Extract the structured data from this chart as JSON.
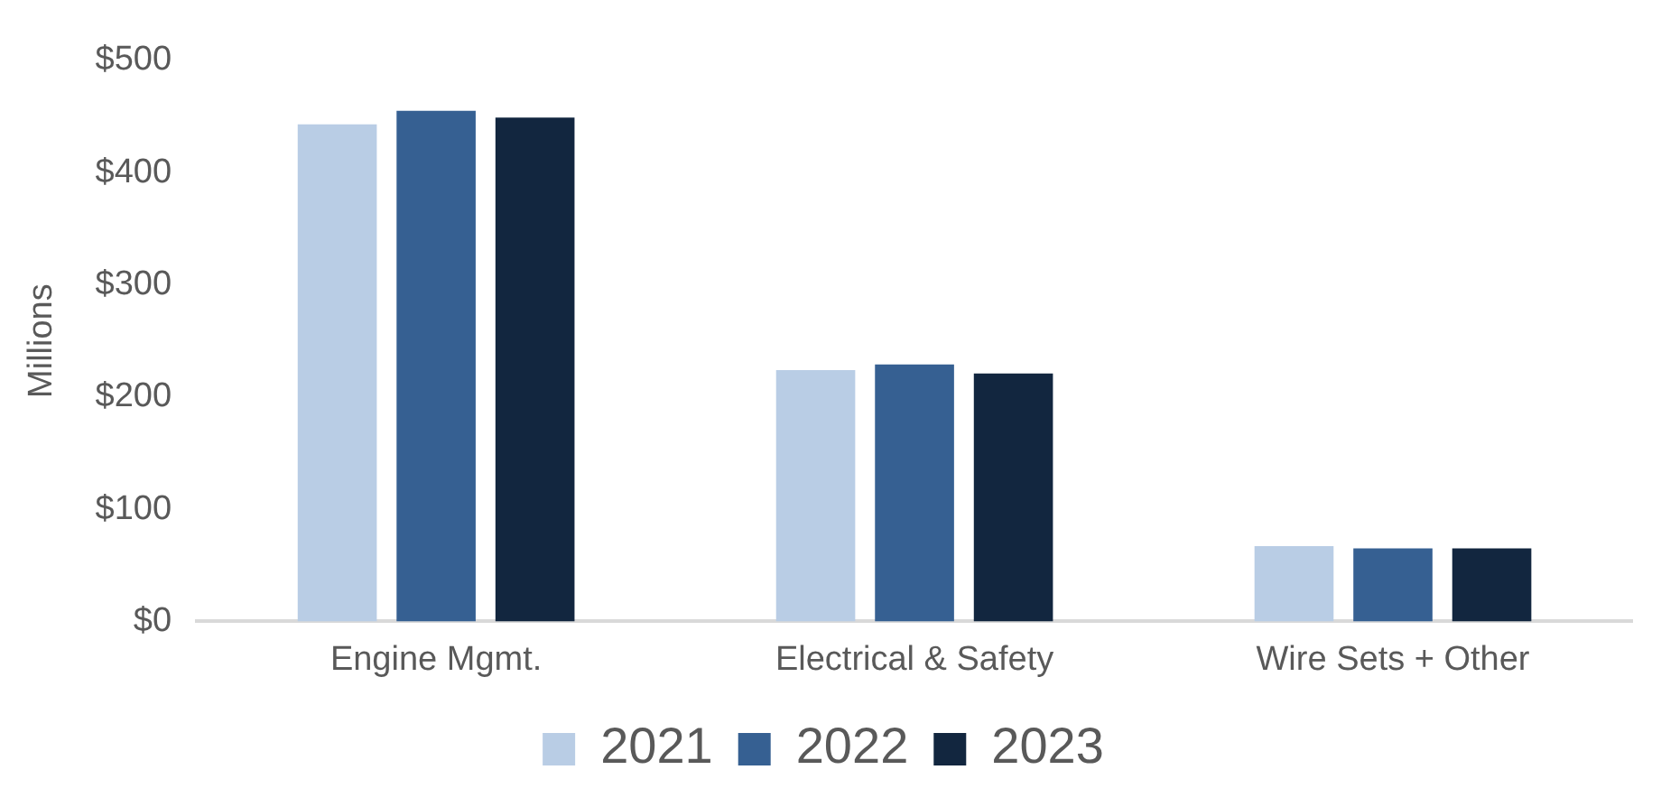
{
  "chart_data": {
    "type": "bar",
    "ylabel": "Millions",
    "categories": [
      "Engine Mgmt.",
      "Electrical & Safety",
      "Wire Sets + Other"
    ],
    "series": [
      {
        "name": "2021",
        "color": "#b9cde5",
        "values": [
          443,
          224,
          67
        ]
      },
      {
        "name": "2022",
        "color": "#366092",
        "values": [
          455,
          229,
          65
        ]
      },
      {
        "name": "2023",
        "color": "#12263f",
        "values": [
          449,
          221,
          65
        ]
      }
    ],
    "ylim": [
      0,
      500
    ],
    "yticks": [
      {
        "value": 0,
        "label": "$0"
      },
      {
        "value": 100,
        "label": "$100"
      },
      {
        "value": 200,
        "label": "$200"
      },
      {
        "value": 300,
        "label": "$300"
      },
      {
        "value": 400,
        "label": "$400"
      },
      {
        "value": 500,
        "label": "$500"
      }
    ],
    "grid": false,
    "legend": "bottom"
  }
}
